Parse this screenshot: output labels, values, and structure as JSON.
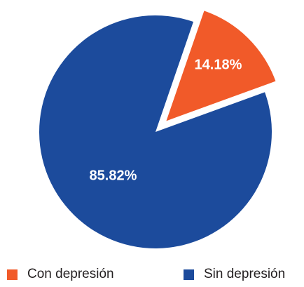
{
  "chart_data": {
    "type": "pie",
    "categories": [
      "Con depresión",
      "Sin depresión"
    ],
    "values": [
      14.18,
      85.82
    ],
    "labels": [
      "14.18%",
      "85.82%"
    ],
    "colors": [
      "#f15a29",
      "#1c4b9c"
    ],
    "exploded": [
      "Con depresión"
    ],
    "legend_position": "bottom"
  }
}
